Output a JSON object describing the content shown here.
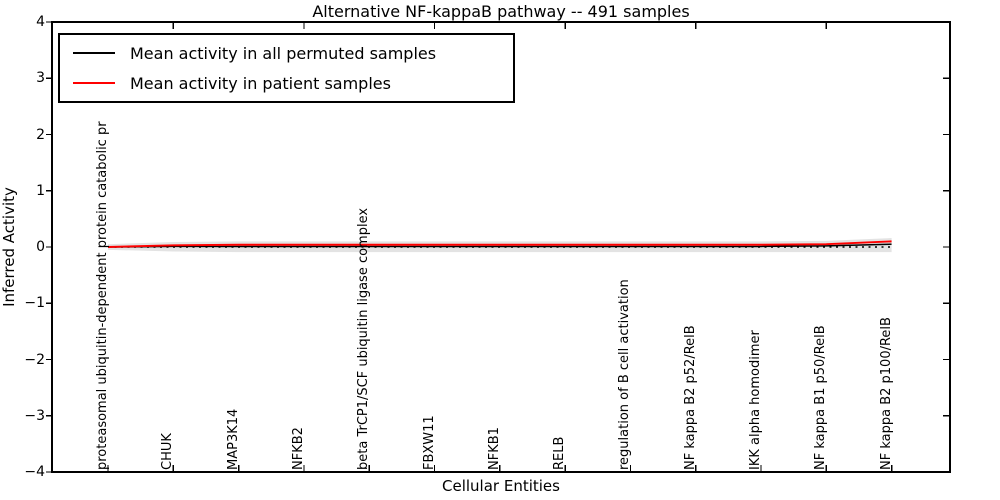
{
  "chart_data": {
    "type": "line",
    "title": "Alternative NF-kappaB pathway -- 491 samples",
    "xlabel": "Cellular Entities",
    "ylabel": "Inferred Activity",
    "categories": [
      "proteasomal ubiquitin-dependent protein catabolic pr",
      "CHUK",
      "MAP3K14",
      "NFKB2",
      "beta TrCP1/SCF ubiquitin ligase complex",
      "FBXW11",
      "NFKB1",
      "RELB",
      "regulation of B cell activation",
      "NF kappa B2 p52/RelB",
      "IKK alpha homodimer",
      "NF kappa B1 p50/RelB",
      "NF kappa B2 p100/RelB"
    ],
    "series": [
      {
        "name": "Mean activity in all permuted samples",
        "color": "#000000",
        "values": [
          0.0,
          0.01,
          0.01,
          0.01,
          0.01,
          0.01,
          0.01,
          0.01,
          0.01,
          0.01,
          0.01,
          0.02,
          0.05
        ]
      },
      {
        "name": "Mean activity in patient samples",
        "color": "#ff0000",
        "values": [
          0.0,
          0.03,
          0.04,
          0.04,
          0.04,
          0.04,
          0.04,
          0.04,
          0.04,
          0.04,
          0.04,
          0.05,
          0.1
        ]
      }
    ],
    "band": {
      "color": "#e3e3e3",
      "upper": [
        0.05,
        0.09,
        0.1,
        0.1,
        0.1,
        0.1,
        0.1,
        0.1,
        0.1,
        0.1,
        0.1,
        0.11,
        0.16
      ],
      "lower": [
        -0.05,
        -0.08,
        -0.09,
        -0.09,
        -0.09,
        -0.09,
        -0.09,
        -0.09,
        -0.09,
        -0.09,
        -0.09,
        -0.09,
        -0.09
      ]
    },
    "zero_line": {
      "style": "dotted",
      "color": "#000000",
      "value": 0
    },
    "yticks": [
      "4",
      "3",
      "2",
      "1",
      "0",
      "−1",
      "−2",
      "−3",
      "−4"
    ],
    "ytick_values": [
      4,
      3,
      2,
      1,
      0,
      -1,
      -2,
      -3,
      -4
    ],
    "ylim": [
      -4,
      4
    ],
    "grid": false,
    "legend_position": "upper left"
  }
}
